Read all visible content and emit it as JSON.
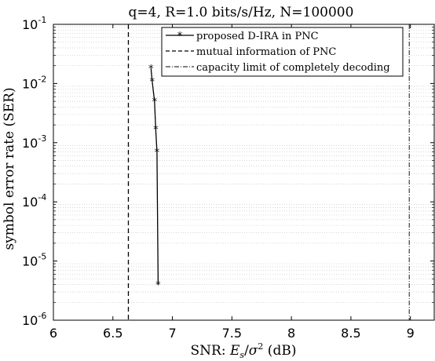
{
  "chart_data": {
    "type": "line",
    "title": "q=4, R=1.0 bits/s/Hz, N=100000",
    "xlabel": "SNR: E_s/σ^2 (dB)",
    "xlabel_parts": {
      "prefix": "SNR: ",
      "E": "E",
      "s": "s",
      "slash": "/",
      "sigma": "σ",
      "sup": "2",
      "suffix": " (dB)"
    },
    "ylabel": "symbol error rate (SER)",
    "xlim": [
      6,
      9.2
    ],
    "ylim_log10": [
      -6,
      -1
    ],
    "yscale": "log",
    "grid": "horizontal minor dotted",
    "x_ticks": [
      6,
      6.5,
      7,
      7.5,
      8,
      8.5,
      9
    ],
    "x_tick_labels": [
      "6",
      "6.5",
      "7",
      "7.5",
      "8",
      "8.5",
      "9"
    ],
    "y_ticks": [
      -6,
      -5,
      -4,
      -3,
      -2,
      -1
    ],
    "y_tick_base": "10",
    "y_tick_exps": [
      "-6",
      "-5",
      "-4",
      "-3",
      "-2",
      "-1"
    ],
    "legend_position": "top-right",
    "series": [
      {
        "name": "proposed D-IRA in PNC",
        "style": "solid-asterisk",
        "x": [
          6.82,
          6.83,
          6.85,
          6.86,
          6.87,
          6.88
        ],
        "y": [
          0.018,
          0.011,
          0.005,
          0.0017,
          0.0007,
          4e-06
        ]
      },
      {
        "name": "mutual information of PNC",
        "style": "dashed",
        "x_const": 6.63
      },
      {
        "name": "capacity limit of completely decoding",
        "style": "dashdot",
        "x_const": 8.99
      }
    ]
  }
}
